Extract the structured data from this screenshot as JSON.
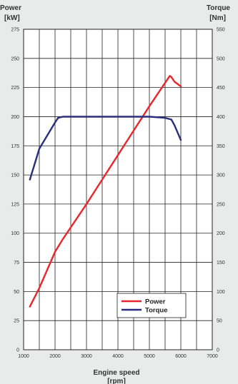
{
  "chart_data": {
    "type": "line",
    "title": "",
    "left_axis": {
      "title_line1": "Power",
      "title_line2": "[kW]",
      "range": [
        0,
        275
      ],
      "ticks": [
        0,
        25,
        50,
        75,
        100,
        125,
        150,
        175,
        200,
        225,
        250,
        275
      ]
    },
    "right_axis": {
      "title_line1": "Torque",
      "title_line2": "[Nm]",
      "range": [
        0,
        550
      ],
      "ticks": [
        0,
        50,
        100,
        150,
        200,
        250,
        300,
        350,
        400,
        450,
        500,
        550
      ]
    },
    "x_axis": {
      "title_line1": "Engine speed",
      "title_line2": "[rpm]",
      "range": [
        1000,
        7000
      ],
      "ticks": [
        1000,
        2000,
        3000,
        4000,
        5000,
        6000,
        7000
      ],
      "minor_step": 500
    },
    "grid": true,
    "legend_position": "bottom-right",
    "series": [
      {
        "name": "Power",
        "axis": "left",
        "color": "#e8262c",
        "x": [
          1200,
          1500,
          2000,
          2250,
          2500,
          3000,
          3500,
          4000,
          4500,
          5000,
          5500,
          5650,
          5700,
          5800,
          6000
        ],
        "y": [
          37,
          53,
          84,
          95,
          105,
          125,
          146,
          167,
          188,
          209,
          229,
          235,
          234,
          230,
          226
        ]
      },
      {
        "name": "Torque",
        "axis": "right",
        "color": "#2b2e7e",
        "x": [
          1200,
          1500,
          2000,
          2100,
          2250,
          3000,
          4000,
          5000,
          5500,
          5700,
          5800,
          6000
        ],
        "y": [
          292,
          345,
          390,
          398,
          400,
          400,
          400,
          400,
          398,
          395,
          385,
          360
        ]
      }
    ]
  }
}
